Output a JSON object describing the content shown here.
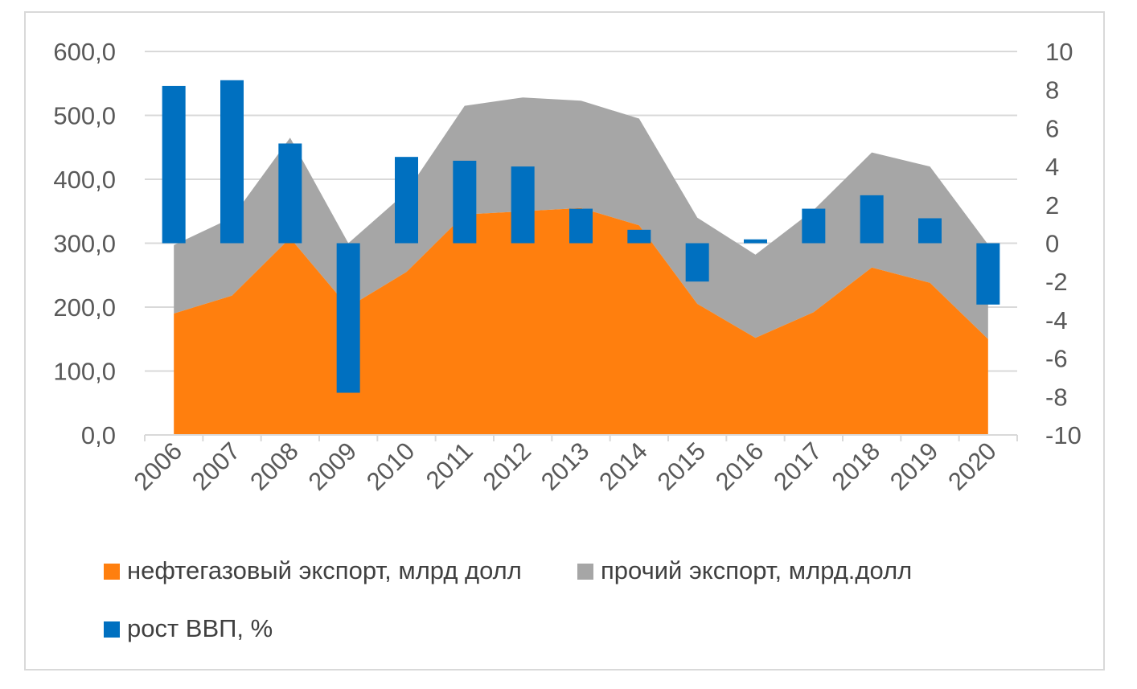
{
  "chart_data": {
    "type": "area+bar",
    "title": "",
    "categories": [
      "2006",
      "2007",
      "2008",
      "2009",
      "2010",
      "2011",
      "2012",
      "2013",
      "2014",
      "2015",
      "2016",
      "2017",
      "2018",
      "2019",
      "2020"
    ],
    "series": [
      {
        "name": "нефтегазовый экспорт, млрд долл",
        "type": "area",
        "stacked": true,
        "axis": "left",
        "color": "#ff7f0e",
        "values": [
          190,
          218,
          308,
          200,
          255,
          345,
          350,
          355,
          328,
          205,
          152,
          192,
          262,
          238,
          150
        ]
      },
      {
        "name": "прочий экспорт, млрд.долл",
        "type": "area",
        "stacked": true,
        "axis": "left",
        "color": "#a6a6a6",
        "values": [
          107,
          122,
          157,
          100,
          125,
          170,
          178,
          168,
          167,
          135,
          130,
          160,
          180,
          182,
          148
        ]
      },
      {
        "name": "рост ВВП, %",
        "type": "bar",
        "axis": "right",
        "color": "#0070c0",
        "values": [
          8.2,
          8.5,
          5.2,
          -7.8,
          4.5,
          4.3,
          4.0,
          1.8,
          0.7,
          -2.0,
          0.2,
          1.8,
          2.5,
          1.3,
          -3.2
        ]
      }
    ],
    "left_axis": {
      "ylim": [
        0,
        600
      ],
      "ticks": [
        "0,0",
        "100,0",
        "200,0",
        "300,0",
        "400,0",
        "500,0",
        "600,0"
      ],
      "tick_values": [
        0,
        100,
        200,
        300,
        400,
        500,
        600
      ]
    },
    "right_axis": {
      "ylim": [
        -10,
        10
      ],
      "ticks": [
        "-10",
        "-8",
        "-6",
        "-4",
        "-2",
        "0",
        "2",
        "4",
        "6",
        "8",
        "10"
      ],
      "tick_values": [
        -10,
        -8,
        -6,
        -4,
        -2,
        0,
        2,
        4,
        6,
        8,
        10
      ]
    },
    "gridlines": true,
    "legend_position": "bottom-left"
  }
}
